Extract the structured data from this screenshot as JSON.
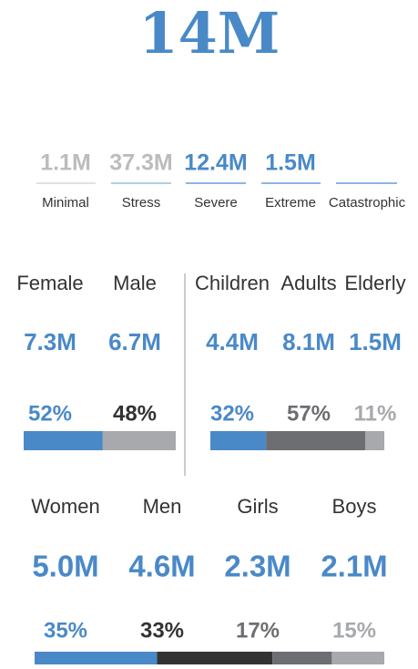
{
  "headline": "14M",
  "severity": {
    "items": [
      {
        "value": "1.1M",
        "label": "Minimal",
        "color": "#bcbcbc",
        "line": "#cfcfcf"
      },
      {
        "value": "37.3M",
        "label": "Stress",
        "color": "#bcbcbc",
        "line": "#7fb0d8"
      },
      {
        "value": "12.4M",
        "label": "Severe",
        "color": "#4a89c8",
        "line": "#4a89c8"
      },
      {
        "value": "1.5M",
        "label": "Extreme",
        "color": "#4a89c8",
        "line": "#4a89c8"
      },
      {
        "label": "Catastrophic",
        "line": "#4a89c8"
      }
    ]
  },
  "sex": {
    "labels": [
      "Female",
      "Male"
    ],
    "counts": [
      "7.3M",
      "6.7M"
    ],
    "values": [
      52,
      48
    ],
    "value_labels": [
      "52%",
      "48%"
    ],
    "colors": [
      "#4a89c8",
      "#a7a9ac"
    ],
    "label_colors": [
      "#4a89c8",
      "#333333"
    ]
  },
  "age": {
    "labels": [
      "Children",
      "Adults",
      "Elderly"
    ],
    "counts": [
      "4.4M",
      "8.1M",
      "1.5M"
    ],
    "values": [
      32,
      57,
      11
    ],
    "value_labels": [
      "32%",
      "57%",
      "11%"
    ],
    "colors": [
      "#4a89c8",
      "#6d6e71",
      "#a7a9ac"
    ],
    "label_colors": [
      "#4a89c8",
      "#6d6e71",
      "#a7a9ac"
    ]
  },
  "gender_age": {
    "labels": [
      "Women",
      "Men",
      "Girls",
      "Boys"
    ],
    "counts": [
      "5.0M",
      "4.6M",
      "2.3M",
      "2.1M"
    ],
    "values": [
      35,
      33,
      17,
      15
    ],
    "value_labels": [
      "35%",
      "33%",
      "17%",
      "15%"
    ],
    "colors": [
      "#4a89c8",
      "#333333",
      "#6d6e71",
      "#a7a9ac"
    ],
    "label_colors": [
      "#4a89c8",
      "#333333",
      "#6d6e71",
      "#a7a9ac"
    ]
  }
}
